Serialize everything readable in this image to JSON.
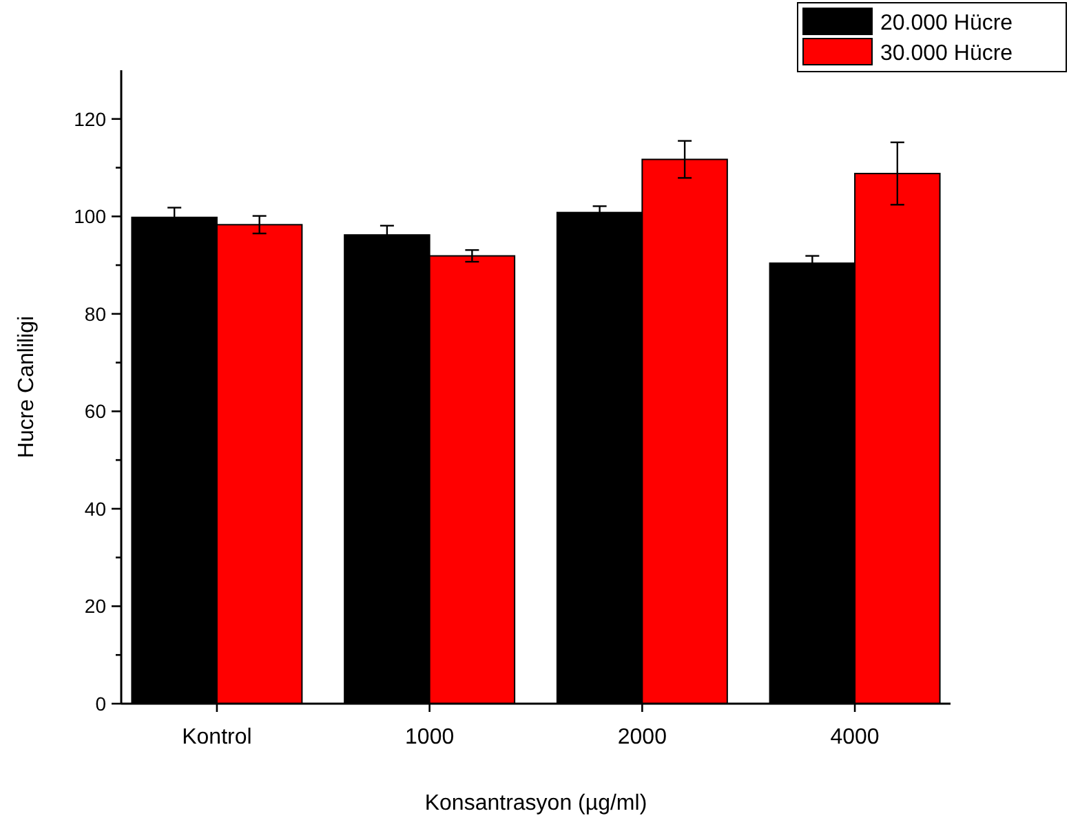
{
  "chart_data": {
    "type": "bar",
    "xlabel": "Konsantrasyon (µg/ml)",
    "ylabel": "Hucre Canliligi",
    "categories": [
      "Kontrol",
      "1000",
      "2000",
      "4000"
    ],
    "series": [
      {
        "name": "20.000 Hücre",
        "color": "#000000",
        "values": [
          99.8,
          96.2,
          100.8,
          90.4
        ],
        "errors": [
          2,
          1.9,
          1.3,
          1.5
        ]
      },
      {
        "name": "30.000 Hücre",
        "color": "#ff0000",
        "values": [
          98.3,
          91.9,
          111.7,
          108.8
        ],
        "errors": [
          1.8,
          1.2,
          3.8,
          6.4
        ]
      }
    ],
    "ylim": [
      0,
      130
    ],
    "yticks": [
      0,
      {
        "value": 10,
        "label": null
      },
      20,
      {
        "value": 30,
        "label": null
      },
      40,
      {
        "value": 50,
        "label": null
      },
      60,
      {
        "value": 70,
        "label": null
      },
      80,
      {
        "value": 90,
        "label": null
      },
      100,
      {
        "value": 110,
        "label": null
      },
      120
    ],
    "legend": "top right"
  }
}
